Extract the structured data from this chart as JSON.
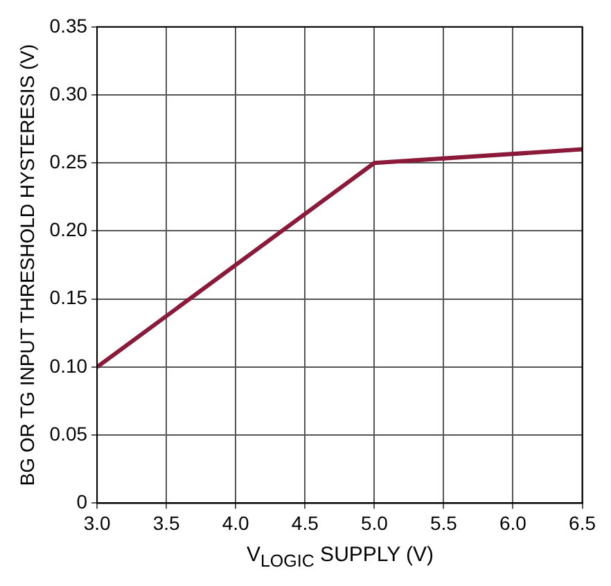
{
  "chart_data": {
    "type": "line",
    "xlabel": "V$_{LOGIC}$ SUPPLY (V)",
    "ylabel": "BG OR TG INPUT THRESHOLD HYSTERESIS (V)",
    "x": [
      3.0,
      5.0,
      6.5
    ],
    "series": [
      {
        "color": "#8b1a3a",
        "values": [
          0.1,
          0.25,
          0.26
        ]
      }
    ],
    "xlim": [
      3.0,
      6.5
    ],
    "xticks": [
      {
        "value": 3.0,
        "label": "3.0"
      },
      {
        "value": 3.5,
        "label": "3.5"
      },
      {
        "value": 4.0,
        "label": "4.0"
      },
      {
        "value": 4.5,
        "label": "4.5"
      },
      {
        "value": 5.0,
        "label": "5.0"
      },
      {
        "value": 5.5,
        "label": "5.5"
      },
      {
        "value": 6.0,
        "label": "6.0"
      },
      {
        "value": 6.5,
        "label": "6.5"
      }
    ],
    "ylim": [
      0,
      0.35
    ],
    "yticks": [
      0,
      0.05,
      {
        "value": 0.1,
        "label": "0.10"
      },
      0.15,
      {
        "value": 0.2,
        "label": "0.20"
      },
      0.25,
      {
        "value": 0.3,
        "label": "0.30"
      },
      0.35
    ],
    "grid": true,
    "legend": false,
    "marker": "none",
    "line_style": "solid"
  }
}
